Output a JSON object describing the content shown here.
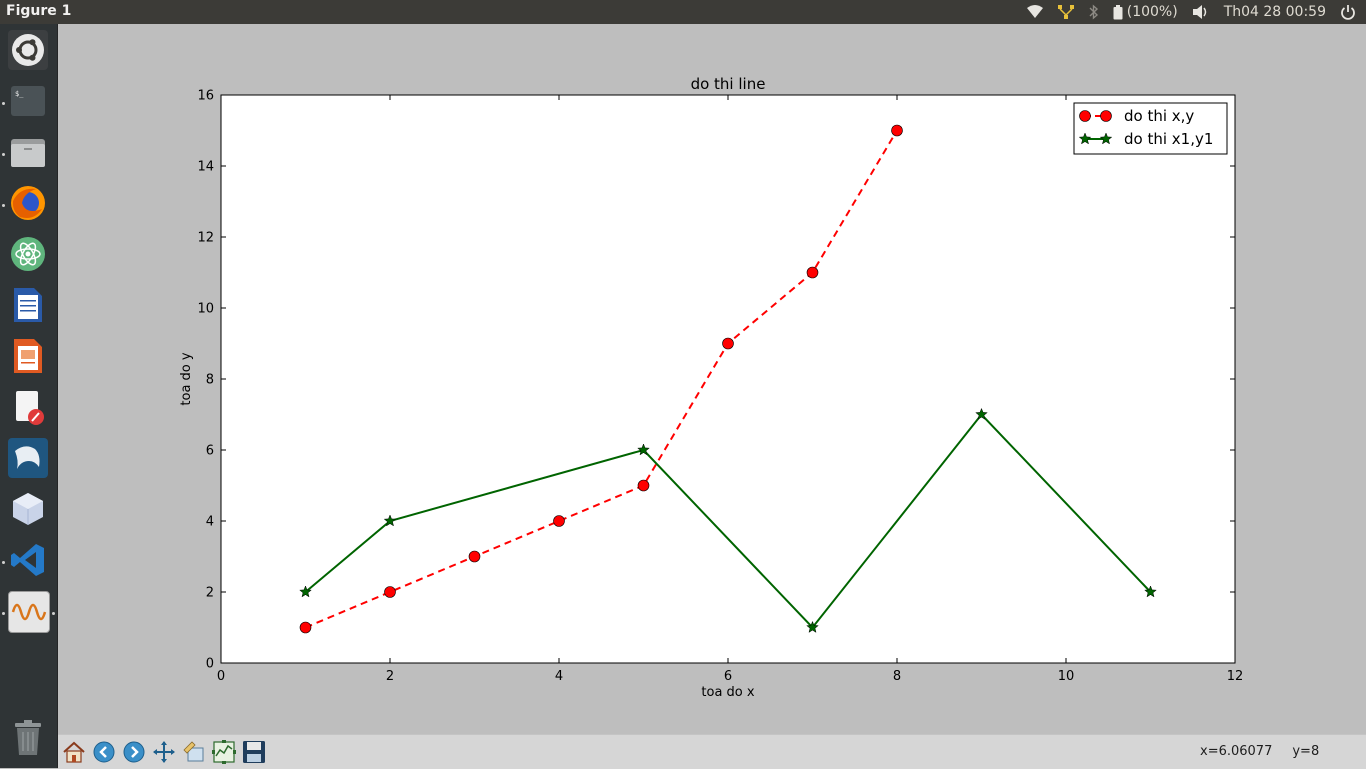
{
  "window": {
    "title": "Figure 1"
  },
  "topbar": {
    "battery": "(100%)",
    "clock": "Th04 28 00:59",
    "icons": [
      "wifi-icon",
      "network-icon",
      "bluetooth-icon",
      "battery-icon",
      "volume-icon",
      "power-icon"
    ]
  },
  "launcher": {
    "items": [
      "ubuntu-dash",
      "terminal",
      "files",
      "firefox",
      "atom",
      "libreoffice-writer",
      "libreoffice-impress",
      "text-editor",
      "mysql-workbench",
      "virtualbox",
      "vscode",
      "matplotlib-figure",
      "trash"
    ]
  },
  "toolbar": {
    "buttons": [
      "home",
      "back",
      "forward",
      "pan",
      "zoom",
      "configure-subplots",
      "save"
    ],
    "coord_x": "x=6.06077",
    "coord_y": "y=8"
  },
  "colors": {
    "series1": "#ff0000",
    "series2": "#006400",
    "panel": "#3c3b37",
    "launcher": "#2f3436",
    "figure_bg": "#bebebe"
  },
  "chart_data": {
    "type": "line",
    "title": "do thi line",
    "xlabel": "toa do x",
    "ylabel": "toa do y",
    "xlim": [
      0,
      12
    ],
    "ylim": [
      0,
      16
    ],
    "xticks": [
      0,
      2,
      4,
      6,
      8,
      10,
      12
    ],
    "yticks": [
      0,
      2,
      4,
      6,
      8,
      10,
      12,
      14,
      16
    ],
    "legend_position": "top-right",
    "grid": false,
    "series": [
      {
        "name": "do thi x,y",
        "x": [
          1,
          2,
          3,
          4,
          5,
          6,
          7,
          8
        ],
        "y": [
          1,
          2,
          3,
          4,
          5,
          9,
          11,
          15
        ],
        "color": "#ff0000",
        "linestyle": "dashed",
        "marker": "circle"
      },
      {
        "name": "do thi x1,y1",
        "x": [
          1,
          2,
          5,
          7,
          9,
          11
        ],
        "y": [
          2,
          4,
          6,
          1,
          7,
          2
        ],
        "color": "#006400",
        "linestyle": "solid",
        "marker": "star"
      }
    ]
  }
}
